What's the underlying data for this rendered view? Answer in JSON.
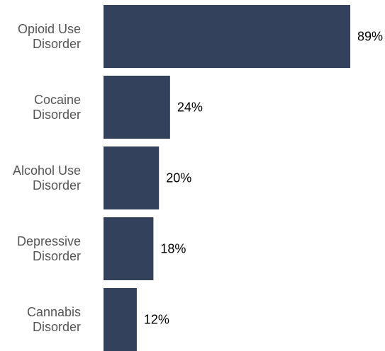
{
  "chart_data": {
    "type": "bar",
    "orientation": "horizontal",
    "title": "",
    "xlabel": "",
    "ylabel": "",
    "categories": [
      [
        "Opioid Use",
        "Disorder"
      ],
      [
        "Cocaine",
        "Disorder"
      ],
      [
        "Alcohol Use",
        "Disorder"
      ],
      [
        "Depressive",
        "Disorder"
      ],
      [
        "Cannabis",
        "Disorder"
      ]
    ],
    "values": [
      89,
      24,
      20,
      18,
      12
    ],
    "data_labels": [
      "89%",
      "24%",
      "20%",
      "18%",
      "12%"
    ],
    "xlim": [
      0,
      89
    ],
    "grid": false,
    "legend": "none",
    "bar_color": "#33415c"
  }
}
